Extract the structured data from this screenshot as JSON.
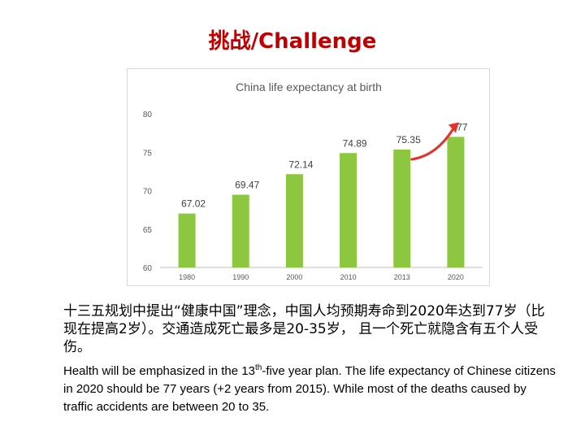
{
  "slide": {
    "title": "挑战/Challenge"
  },
  "text": {
    "chinese": "十三五规划中提出“健康中国”理念，中国人均预期寿命到2020年达到77岁（比现在提高2岁）。交通造成死亡最多是20-35岁， 且一个死亡就隐含有五个人受伤。",
    "english_part1": "Health will be emphasized in the 13",
    "english_sup": "th",
    "english_part2": "-five year plan. The life expectancy of Chinese citizens in 2020 should be 77 years (+2 years from 2015). While most of the deaths caused by traffic accidents are between 20 to 35."
  },
  "colors": {
    "bar": "#8dc63f",
    "arrow": "#e8302a",
    "title": "#c00000"
  },
  "chart_data": {
    "type": "bar",
    "title": "China life expectancy at birth",
    "categories": [
      "1980",
      "1990",
      "2000",
      "2010",
      "2013",
      "2020"
    ],
    "values": [
      67.02,
      69.47,
      72.14,
      74.89,
      75.35,
      77
    ],
    "data_labels": [
      "67.02",
      "69.47",
      "72.14",
      "74.89",
      "75.35",
      "77"
    ],
    "ylim": [
      60,
      80
    ],
    "yticks": [
      60,
      65,
      70,
      75,
      80
    ],
    "grid": false,
    "legend": "none",
    "annotation": "arrow from 2013 bar to 2020 bar"
  }
}
